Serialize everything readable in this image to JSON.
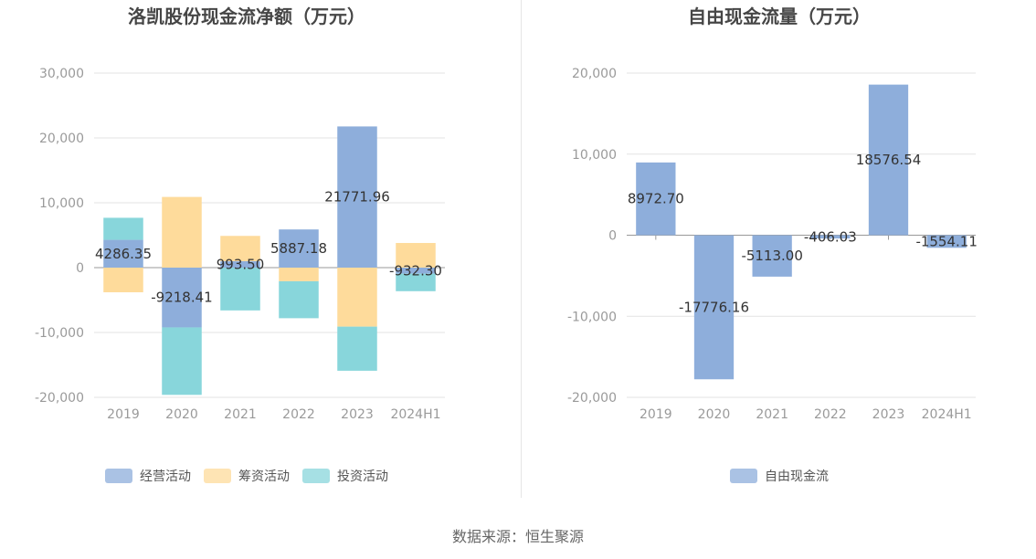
{
  "source": "数据来源：恒生聚源",
  "chart_data": [
    {
      "type": "bar",
      "stacked": true,
      "title": "洛凯股份现金流净额（万元）",
      "categories": [
        "2019",
        "2020",
        "2021",
        "2022",
        "2023",
        "2024H1"
      ],
      "ylim": [
        -20000,
        30000
      ],
      "yticks": [
        30000,
        20000,
        10000,
        0,
        -10000,
        -20000
      ],
      "ytick_labels": [
        "30,000",
        "20,000",
        "10,000",
        "0",
        "-10,000",
        "-20,000"
      ],
      "grid": true,
      "legend_position": "bottom",
      "series": [
        {
          "name": "经营活动",
          "color": "#8eaedb",
          "values": [
            4286.35,
            -9218.41,
            993.5,
            5887.18,
            21771.96,
            -932.3
          ],
          "labels": [
            "4286.35",
            "-9218.41",
            "993.50",
            "5887.18",
            "21771.96",
            "-932.30"
          ]
        },
        {
          "name": "筹资活动",
          "color": "#fedb9b",
          "values": [
            -3800,
            10900,
            3900,
            -2100,
            -9100,
            3800
          ]
        },
        {
          "name": "投资活动",
          "color": "#88d6db",
          "values": [
            3400,
            -10400,
            -6600,
            -5700,
            -6800,
            -2700
          ]
        }
      ]
    },
    {
      "type": "bar",
      "title": "自由现金流量（万元）",
      "categories": [
        "2019",
        "2020",
        "2021",
        "2022",
        "2023",
        "2024H1"
      ],
      "ylim": [
        -20000,
        20000
      ],
      "yticks": [
        20000,
        10000,
        0,
        -10000,
        -20000
      ],
      "ytick_labels": [
        "20,000",
        "10,000",
        "0",
        "-10,000",
        "-20,000"
      ],
      "grid": true,
      "legend_position": "bottom",
      "series": [
        {
          "name": "自由现金流",
          "color": "#8eaedb",
          "values": [
            8972.7,
            -17776.16,
            -5113.0,
            -406.03,
            18576.54,
            -1554.11
          ],
          "labels": [
            "8972.70",
            "-17776.16",
            "-5113.00",
            "-406.03",
            "18576.54",
            "-1554.11"
          ]
        }
      ]
    }
  ]
}
